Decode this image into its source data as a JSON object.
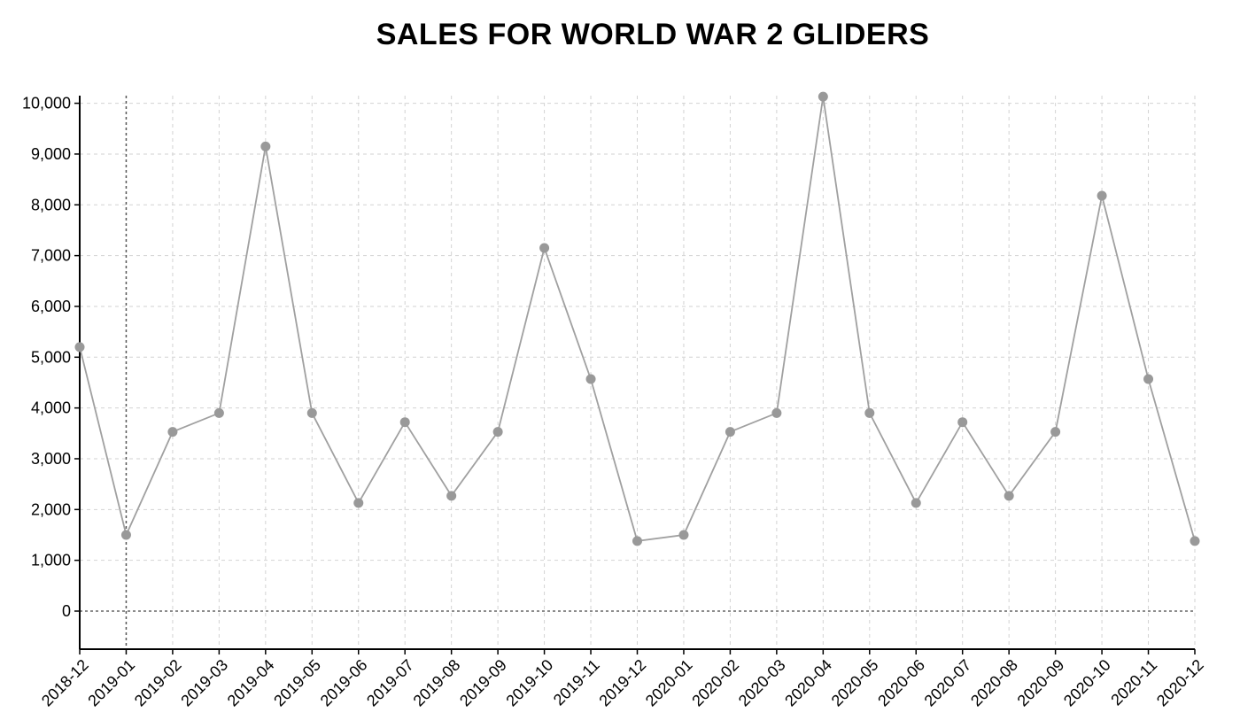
{
  "chart_data": {
    "type": "line",
    "title": "SALES FOR WORLD WAR 2 GLIDERS",
    "xlabel": "",
    "ylabel": "",
    "x": [
      "2018-12",
      "2019-01",
      "2019-02",
      "2019-03",
      "2019-04",
      "2019-05",
      "2019-06",
      "2019-07",
      "2019-08",
      "2019-09",
      "2019-10",
      "2019-11",
      "2019-12",
      "2020-01",
      "2020-02",
      "2020-03",
      "2020-04",
      "2020-05",
      "2020-06",
      "2020-07",
      "2020-08",
      "2020-09",
      "2020-10",
      "2020-11",
      "2020-12"
    ],
    "values": [
      5200,
      1500,
      3530,
      3900,
      9150,
      3900,
      2130,
      3720,
      2270,
      3530,
      7150,
      4570,
      1380,
      1500,
      3530,
      3900,
      10130,
      3900,
      2130,
      3720,
      2270,
      3530,
      8180,
      4570,
      1380
    ],
    "yticks": [
      0,
      1000,
      2000,
      3000,
      4000,
      5000,
      6000,
      7000,
      8000,
      9000,
      10000
    ],
    "ytick_labels": [
      "0",
      "1,000",
      "2,000",
      "3,000",
      "4,000",
      "5,000",
      "6,000",
      "7,000",
      "8,000",
      "9,000",
      "10,000"
    ],
    "ylim": [
      -750,
      10150
    ],
    "grid": true,
    "line_color": "#a0a0a0",
    "point_color": "#999999"
  }
}
